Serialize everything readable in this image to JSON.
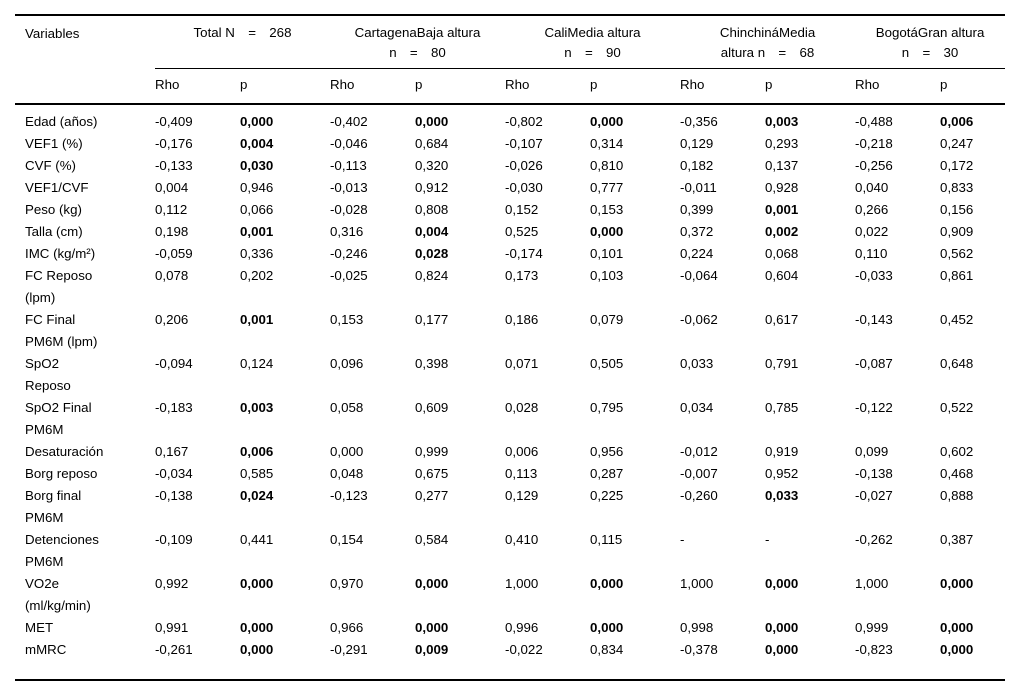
{
  "colors": {
    "background": "#ffffff",
    "text": "#000000",
    "rule": "#000000"
  },
  "table": {
    "variables_header": "Variables",
    "col_groups": [
      {
        "name": "total",
        "line1": "Total N = 268",
        "line2": ""
      },
      {
        "name": "cartagena",
        "line1": "CartagenaBaja altura",
        "line2": "n = 80"
      },
      {
        "name": "cali",
        "line1": "CaliMedia altura",
        "line2": "n = 90"
      },
      {
        "name": "chinchina",
        "line1": "ChinchináMedia",
        "line2": "altura n = 68"
      },
      {
        "name": "bogota",
        "line1": "BogotáGran altura",
        "line2": "n = 30"
      }
    ],
    "stat_headers": [
      "Rho",
      "p"
    ],
    "rows": [
      {
        "variable": "Edad (años)",
        "values": [
          "-0,409",
          "0,000",
          "-0,402",
          "0,000",
          "-0,802",
          "0,000",
          "-0,356",
          "0,003",
          "-0,488",
          "0,006"
        ],
        "bold": [
          false,
          true,
          false,
          true,
          false,
          true,
          false,
          true,
          false,
          true
        ]
      },
      {
        "variable": "VEF1 (%)",
        "values": [
          "-0,176",
          "0,004",
          "-0,046",
          "0,684",
          "-0,107",
          "0,314",
          "0,129",
          "0,293",
          "-0,218",
          "0,247"
        ],
        "bold": [
          false,
          true,
          false,
          false,
          false,
          false,
          false,
          false,
          false,
          false
        ]
      },
      {
        "variable": "CVF (%)",
        "values": [
          "-0,133",
          "0,030",
          "-0,113",
          "0,320",
          "-0,026",
          "0,810",
          "0,182",
          "0,137",
          "-0,256",
          "0,172"
        ],
        "bold": [
          false,
          true,
          false,
          false,
          false,
          false,
          false,
          false,
          false,
          false
        ]
      },
      {
        "variable": "VEF1/CVF",
        "values": [
          "0,004",
          "0,946",
          "-0,013",
          "0,912",
          "-0,030",
          "0,777",
          "-0,011",
          "0,928",
          "0,040",
          "0,833"
        ],
        "bold": [
          false,
          false,
          false,
          false,
          false,
          false,
          false,
          false,
          false,
          false
        ]
      },
      {
        "variable": "Peso (kg)",
        "values": [
          "0,112",
          "0,066",
          "-0,028",
          "0,808",
          "0,152",
          "0,153",
          "0,399",
          "0,001",
          "0,266",
          "0,156"
        ],
        "bold": [
          false,
          false,
          false,
          false,
          false,
          false,
          false,
          true,
          false,
          false
        ]
      },
      {
        "variable": "Talla (cm)",
        "values": [
          "0,198",
          "0,001",
          "0,316",
          "0,004",
          "0,525",
          "0,000",
          "0,372",
          "0,002",
          "0,022",
          "0,909"
        ],
        "bold": [
          false,
          true,
          false,
          true,
          false,
          true,
          false,
          true,
          false,
          false
        ]
      },
      {
        "variable": "IMC (kg/m²)",
        "values": [
          "-0,059",
          "0,336",
          "-0,246",
          "0,028",
          "-0,174",
          "0,101",
          "0,224",
          "0,068",
          "0,110",
          "0,562"
        ],
        "bold": [
          false,
          false,
          false,
          true,
          false,
          false,
          false,
          false,
          false,
          false
        ]
      },
      {
        "variable": "FC Reposo\n(lpm)",
        "values": [
          "0,078",
          "0,202",
          "-0,025",
          "0,824",
          "0,173",
          "0,103",
          "-0,064",
          "0,604",
          "-0,033",
          "0,861"
        ],
        "bold": [
          false,
          false,
          false,
          false,
          false,
          false,
          false,
          false,
          false,
          false
        ]
      },
      {
        "variable": "FC Final\nPM6M (lpm)",
        "values": [
          "0,206",
          "0,001",
          "0,153",
          "0,177",
          "0,186",
          "0,079",
          "-0,062",
          "0,617",
          "-0,143",
          "0,452"
        ],
        "bold": [
          false,
          true,
          false,
          false,
          false,
          false,
          false,
          false,
          false,
          false
        ]
      },
      {
        "variable": "SpO2\nReposo",
        "values": [
          "-0,094",
          "0,124",
          "0,096",
          "0,398",
          "0,071",
          "0,505",
          "0,033",
          "0,791",
          "-0,087",
          "0,648"
        ],
        "bold": [
          false,
          false,
          false,
          false,
          false,
          false,
          false,
          false,
          false,
          false
        ]
      },
      {
        "variable": "SpO2 Final\nPM6M",
        "values": [
          "-0,183",
          "0,003",
          "0,058",
          "0,609",
          "0,028",
          "0,795",
          "0,034",
          "0,785",
          "-0,122",
          "0,522"
        ],
        "bold": [
          false,
          true,
          false,
          false,
          false,
          false,
          false,
          false,
          false,
          false
        ]
      },
      {
        "variable": "Desaturación",
        "values": [
          "0,167",
          "0,006",
          "0,000",
          "0,999",
          "0,006",
          "0,956",
          "-0,012",
          "0,919",
          "0,099",
          "0,602"
        ],
        "bold": [
          false,
          true,
          false,
          false,
          false,
          false,
          false,
          false,
          false,
          false
        ]
      },
      {
        "variable": "Borg reposo",
        "values": [
          "-0,034",
          "0,585",
          "0,048",
          "0,675",
          "0,113",
          "0,287",
          "-0,007",
          "0,952",
          "-0,138",
          "0,468"
        ],
        "bold": [
          false,
          false,
          false,
          false,
          false,
          false,
          false,
          false,
          false,
          false
        ]
      },
      {
        "variable": "Borg final\nPM6M",
        "values": [
          "-0,138",
          "0,024",
          "-0,123",
          "0,277",
          "0,129",
          "0,225",
          "-0,260",
          "0,033",
          "-0,027",
          "0,888"
        ],
        "bold": [
          false,
          true,
          false,
          false,
          false,
          false,
          false,
          true,
          false,
          false
        ]
      },
      {
        "variable": "Detenciones\nPM6M",
        "values": [
          "-0,109",
          "0,441",
          "0,154",
          "0,584",
          "0,410",
          "0,115",
          "-",
          "-",
          "-0,262",
          "0,387"
        ],
        "bold": [
          false,
          false,
          false,
          false,
          false,
          false,
          false,
          false,
          false,
          false
        ]
      },
      {
        "variable": "VO2e\n(ml/kg/min)",
        "values": [
          "0,992",
          "0,000",
          "0,970",
          "0,000",
          "1,000",
          "0,000",
          "1,000",
          "0,000",
          "1,000",
          "0,000"
        ],
        "bold": [
          false,
          true,
          false,
          true,
          false,
          true,
          false,
          true,
          false,
          true
        ]
      },
      {
        "variable": "MET",
        "values": [
          "0,991",
          "0,000",
          "0,966",
          "0,000",
          "0,996",
          "0,000",
          "0,998",
          "0,000",
          "0,999",
          "0,000"
        ],
        "bold": [
          false,
          true,
          false,
          true,
          false,
          true,
          false,
          true,
          false,
          true
        ]
      },
      {
        "variable": "mMRC",
        "values": [
          "-0,261",
          "0,000",
          "-0,291",
          "0,009",
          "-0,022",
          "0,834",
          "-0,378",
          "0,000",
          "-0,823",
          "0,000"
        ],
        "bold": [
          false,
          true,
          false,
          true,
          false,
          false,
          false,
          true,
          false,
          true
        ]
      }
    ]
  }
}
